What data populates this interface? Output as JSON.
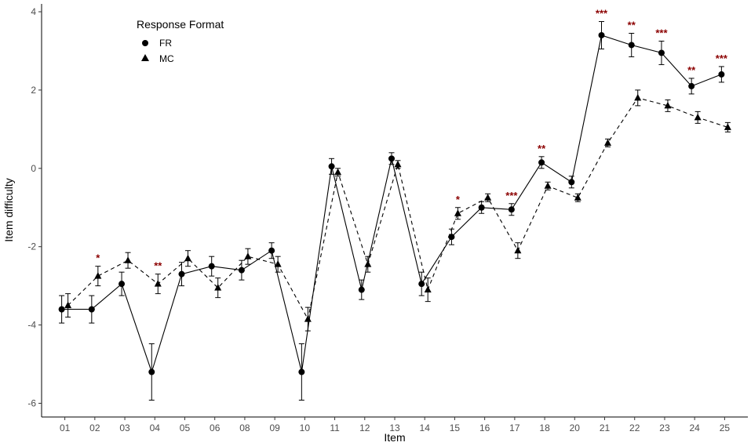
{
  "chart_data": {
    "type": "line",
    "xlabel": "Item",
    "ylabel": "Item difficulty",
    "ylim": [
      -6.35,
      4.2
    ],
    "yticks": [
      -6,
      -4,
      -2,
      0,
      2,
      4
    ],
    "grid": false,
    "legend": {
      "title": "Response Format",
      "position": "top-left",
      "entries": [
        "FR",
        "MC"
      ]
    },
    "categories": [
      "01",
      "02",
      "03",
      "04",
      "05",
      "06",
      "08",
      "09",
      "10",
      "11",
      "12",
      "13",
      "14",
      "15",
      "16",
      "17",
      "18",
      "20",
      "21",
      "22",
      "23",
      "24",
      "25"
    ],
    "series": [
      {
        "name": "FR",
        "marker": "circle",
        "line": "solid",
        "values": [
          -3.6,
          -3.6,
          -2.95,
          -5.2,
          -2.7,
          -2.5,
          -2.6,
          -2.1,
          -5.2,
          0.05,
          -3.1,
          0.25,
          -2.95,
          -1.75,
          -1.0,
          -1.05,
          0.15,
          -0.35,
          3.4,
          3.15,
          2.95,
          2.1,
          2.4
        ],
        "errors": [
          0.35,
          0.35,
          0.3,
          0.72,
          0.3,
          0.25,
          0.25,
          0.2,
          0.72,
          0.2,
          0.25,
          0.15,
          0.3,
          0.2,
          0.15,
          0.15,
          0.15,
          0.15,
          0.35,
          0.3,
          0.3,
          0.2,
          0.2
        ]
      },
      {
        "name": "MC",
        "marker": "triangle",
        "line": "dashed",
        "values": [
          -3.5,
          -2.75,
          -2.35,
          -2.95,
          -2.3,
          -3.05,
          -2.25,
          -2.45,
          -3.85,
          -0.1,
          -2.45,
          0.1,
          -3.1,
          -1.15,
          -0.75,
          -2.1,
          -0.45,
          -0.75,
          0.65,
          1.8,
          1.6,
          1.3,
          1.05
        ]
      }
    ],
    "mc_errors": [
      0.3,
      0.25,
      0.2,
      0.25,
      0.2,
      0.25,
      0.2,
      0.2,
      0.3,
      0.1,
      0.2,
      0.1,
      0.3,
      0.15,
      0.1,
      0.2,
      0.1,
      0.1,
      0.1,
      0.2,
      0.15,
      0.15,
      0.12
    ],
    "annotations": [
      {
        "category": "02",
        "text": "*",
        "series": "MC"
      },
      {
        "category": "04",
        "text": "**",
        "series": "MC"
      },
      {
        "category": "15",
        "text": "*",
        "series": "MC"
      },
      {
        "category": "17",
        "text": "***",
        "series": "FR"
      },
      {
        "category": "18",
        "text": "**",
        "series": "FR"
      },
      {
        "category": "21",
        "text": "***",
        "series": "FR"
      },
      {
        "category": "22",
        "text": "**",
        "series": "FR"
      },
      {
        "category": "23",
        "text": "***",
        "series": "FR"
      },
      {
        "category": "24",
        "text": "**",
        "series": "FR"
      },
      {
        "category": "25",
        "text": "***",
        "series": "FR"
      }
    ]
  }
}
